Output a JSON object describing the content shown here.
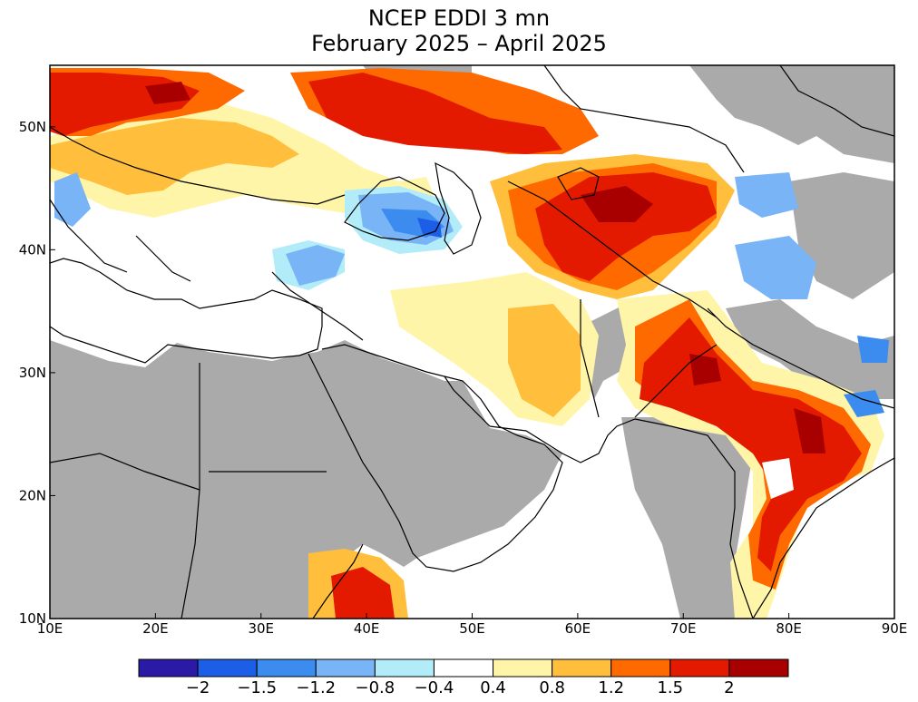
{
  "title": {
    "line1": "NCEP EDDI 3 mn",
    "line2": "February 2025 – April 2025"
  },
  "map": {
    "lon_range": [
      10,
      90
    ],
    "lat_range": [
      10,
      55
    ],
    "x_ticks": [
      {
        "lon": 10,
        "label": "10E"
      },
      {
        "lon": 20,
        "label": "20E"
      },
      {
        "lon": 30,
        "label": "30E"
      },
      {
        "lon": 40,
        "label": "40E"
      },
      {
        "lon": 50,
        "label": "50E"
      },
      {
        "lon": 60,
        "label": "60E"
      },
      {
        "lon": 70,
        "label": "70E"
      },
      {
        "lon": 80,
        "label": "80E"
      },
      {
        "lon": 90,
        "label": "90E"
      }
    ],
    "y_ticks": [
      {
        "lat": 10,
        "label": "10N"
      },
      {
        "lat": 20,
        "label": "20N"
      },
      {
        "lat": 30,
        "label": "30N"
      },
      {
        "lat": 40,
        "label": "40N"
      },
      {
        "lat": 50,
        "label": "50N"
      }
    ],
    "colors": {
      "no_data": "#aaaaaa",
      "ocean": "#ffffff"
    }
  },
  "colorbar": {
    "colors": [
      "#2b1aa6",
      "#1c5ee6",
      "#3c8cf0",
      "#78b4f6",
      "#b2ecf8",
      "#ffffff",
      "#fff5a8",
      "#ffbf3c",
      "#ff6a00",
      "#e41a00",
      "#a80000"
    ],
    "labels": [
      "−2",
      "−1.5",
      "−1.2",
      "−0.8",
      "−0.4",
      "0.4",
      "0.8",
      "1.2",
      "1.5",
      "2"
    ]
  }
}
